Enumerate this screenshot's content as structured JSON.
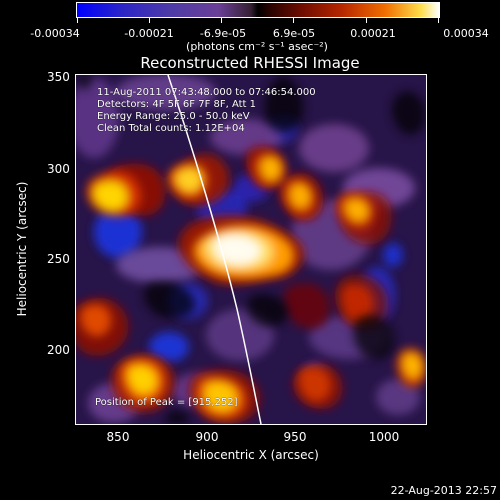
{
  "colorbar": {
    "tick_labels": [
      "-0.00034",
      "-0.00021",
      "-6.9e-05",
      "6.9e-05",
      "0.00021",
      "0.00034"
    ],
    "units": "(photons cm⁻² s⁻¹ asec⁻²)"
  },
  "plot": {
    "title": "Reconstructed RHESSI Image",
    "annotation_lines": [
      "11-Aug-2011 07:43:48.000 to 07:46:54.000",
      "Detectors: 4F 5F 6F 7F 8F, Att 1",
      "Energy Range: 25.0 - 50.0 keV",
      "Clean    Total counts: 1.12E+04"
    ],
    "peak_label": "Position of Peak = [915,252]",
    "x_axis_label": "Heliocentric X (arcsec)",
    "y_axis_label": "Heliocentric Y (arcsec)",
    "x_tick_labels": [
      "850",
      "900",
      "950",
      "1000"
    ],
    "y_tick_labels": [
      "350",
      "300",
      "250",
      "200"
    ]
  },
  "footer": {
    "timestamp": "22-Aug-2013 22:57"
  }
}
